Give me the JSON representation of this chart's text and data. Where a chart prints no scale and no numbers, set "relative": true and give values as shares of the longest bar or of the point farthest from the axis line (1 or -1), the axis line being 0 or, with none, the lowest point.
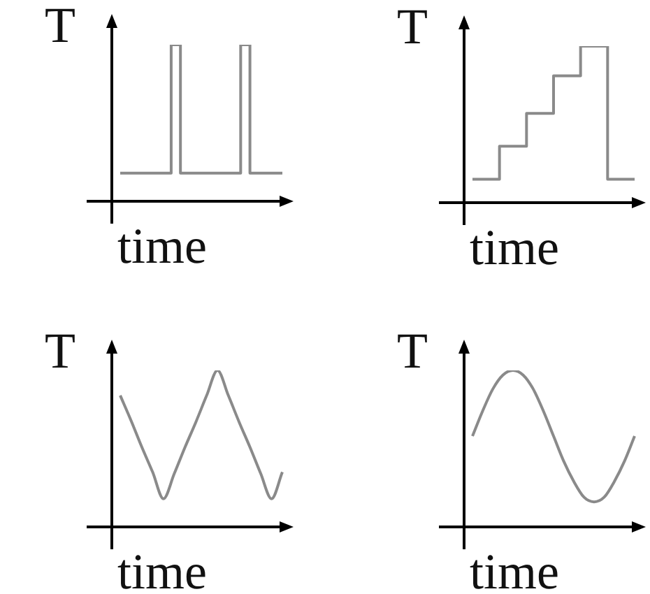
{
  "chart_data": [
    {
      "type": "step",
      "xlabel": "time",
      "ylabel": "T",
      "relative": true,
      "color": "#8a8a8a",
      "categories": [
        null,
        null,
        null,
        null,
        null,
        null,
        null,
        null,
        null,
        null,
        null,
        null,
        null,
        null,
        null,
        null,
        null,
        null,
        null,
        null,
        null,
        null,
        null,
        null,
        null,
        null,
        null,
        null,
        null,
        null,
        null,
        null,
        null,
        null,
        null,
        null
      ],
      "values": [
        0.18,
        0.18,
        0.18,
        0.18,
        0.18,
        0.18,
        0.18,
        0.18,
        0.18,
        0.18,
        0.18,
        1,
        1,
        0.18,
        0.18,
        0.18,
        0.18,
        0.18,
        0.18,
        0.18,
        0.18,
        0.18,
        0.18,
        0.18,
        0.18,
        0.18,
        1,
        1,
        0.18,
        0.18,
        0.18,
        0.18,
        0.18,
        0.18,
        0.18,
        0.18
      ]
    },
    {
      "type": "step",
      "xlabel": "time",
      "ylabel": "T",
      "relative": true,
      "color": "#8a8a8a",
      "categories": [
        null,
        null,
        null,
        null,
        null,
        null,
        null
      ],
      "values": [
        0.15,
        0.36,
        0.57,
        0.81,
        1,
        0.15,
        0.15
      ]
    },
    {
      "type": "line",
      "xlabel": "time",
      "ylabel": "T",
      "relative": true,
      "color": "#8a8a8a",
      "categories": [
        null,
        null,
        null,
        null,
        null,
        null,
        null,
        null,
        null,
        null,
        null,
        null,
        null,
        null,
        null,
        null
      ],
      "values": [
        0.84,
        0.68,
        0.51,
        0.35,
        0.18,
        0.34,
        0.51,
        0.67,
        0.84,
        1,
        0.84,
        0.67,
        0.51,
        0.34,
        0.18,
        0.35
      ]
    },
    {
      "type": "line",
      "xlabel": "time",
      "ylabel": "T",
      "relative": true,
      "color": "#8a8a8a",
      "categories": [
        null,
        null,
        null,
        null,
        null,
        null,
        null,
        null,
        null,
        null,
        null,
        null,
        null,
        null,
        null,
        null,
        null
      ],
      "values": [
        0.58,
        0.74,
        0.88,
        0.97,
        1,
        0.97,
        0.88,
        0.74,
        0.58,
        0.42,
        0.29,
        0.19,
        0.16,
        0.19,
        0.29,
        0.42,
        0.58
      ]
    }
  ]
}
